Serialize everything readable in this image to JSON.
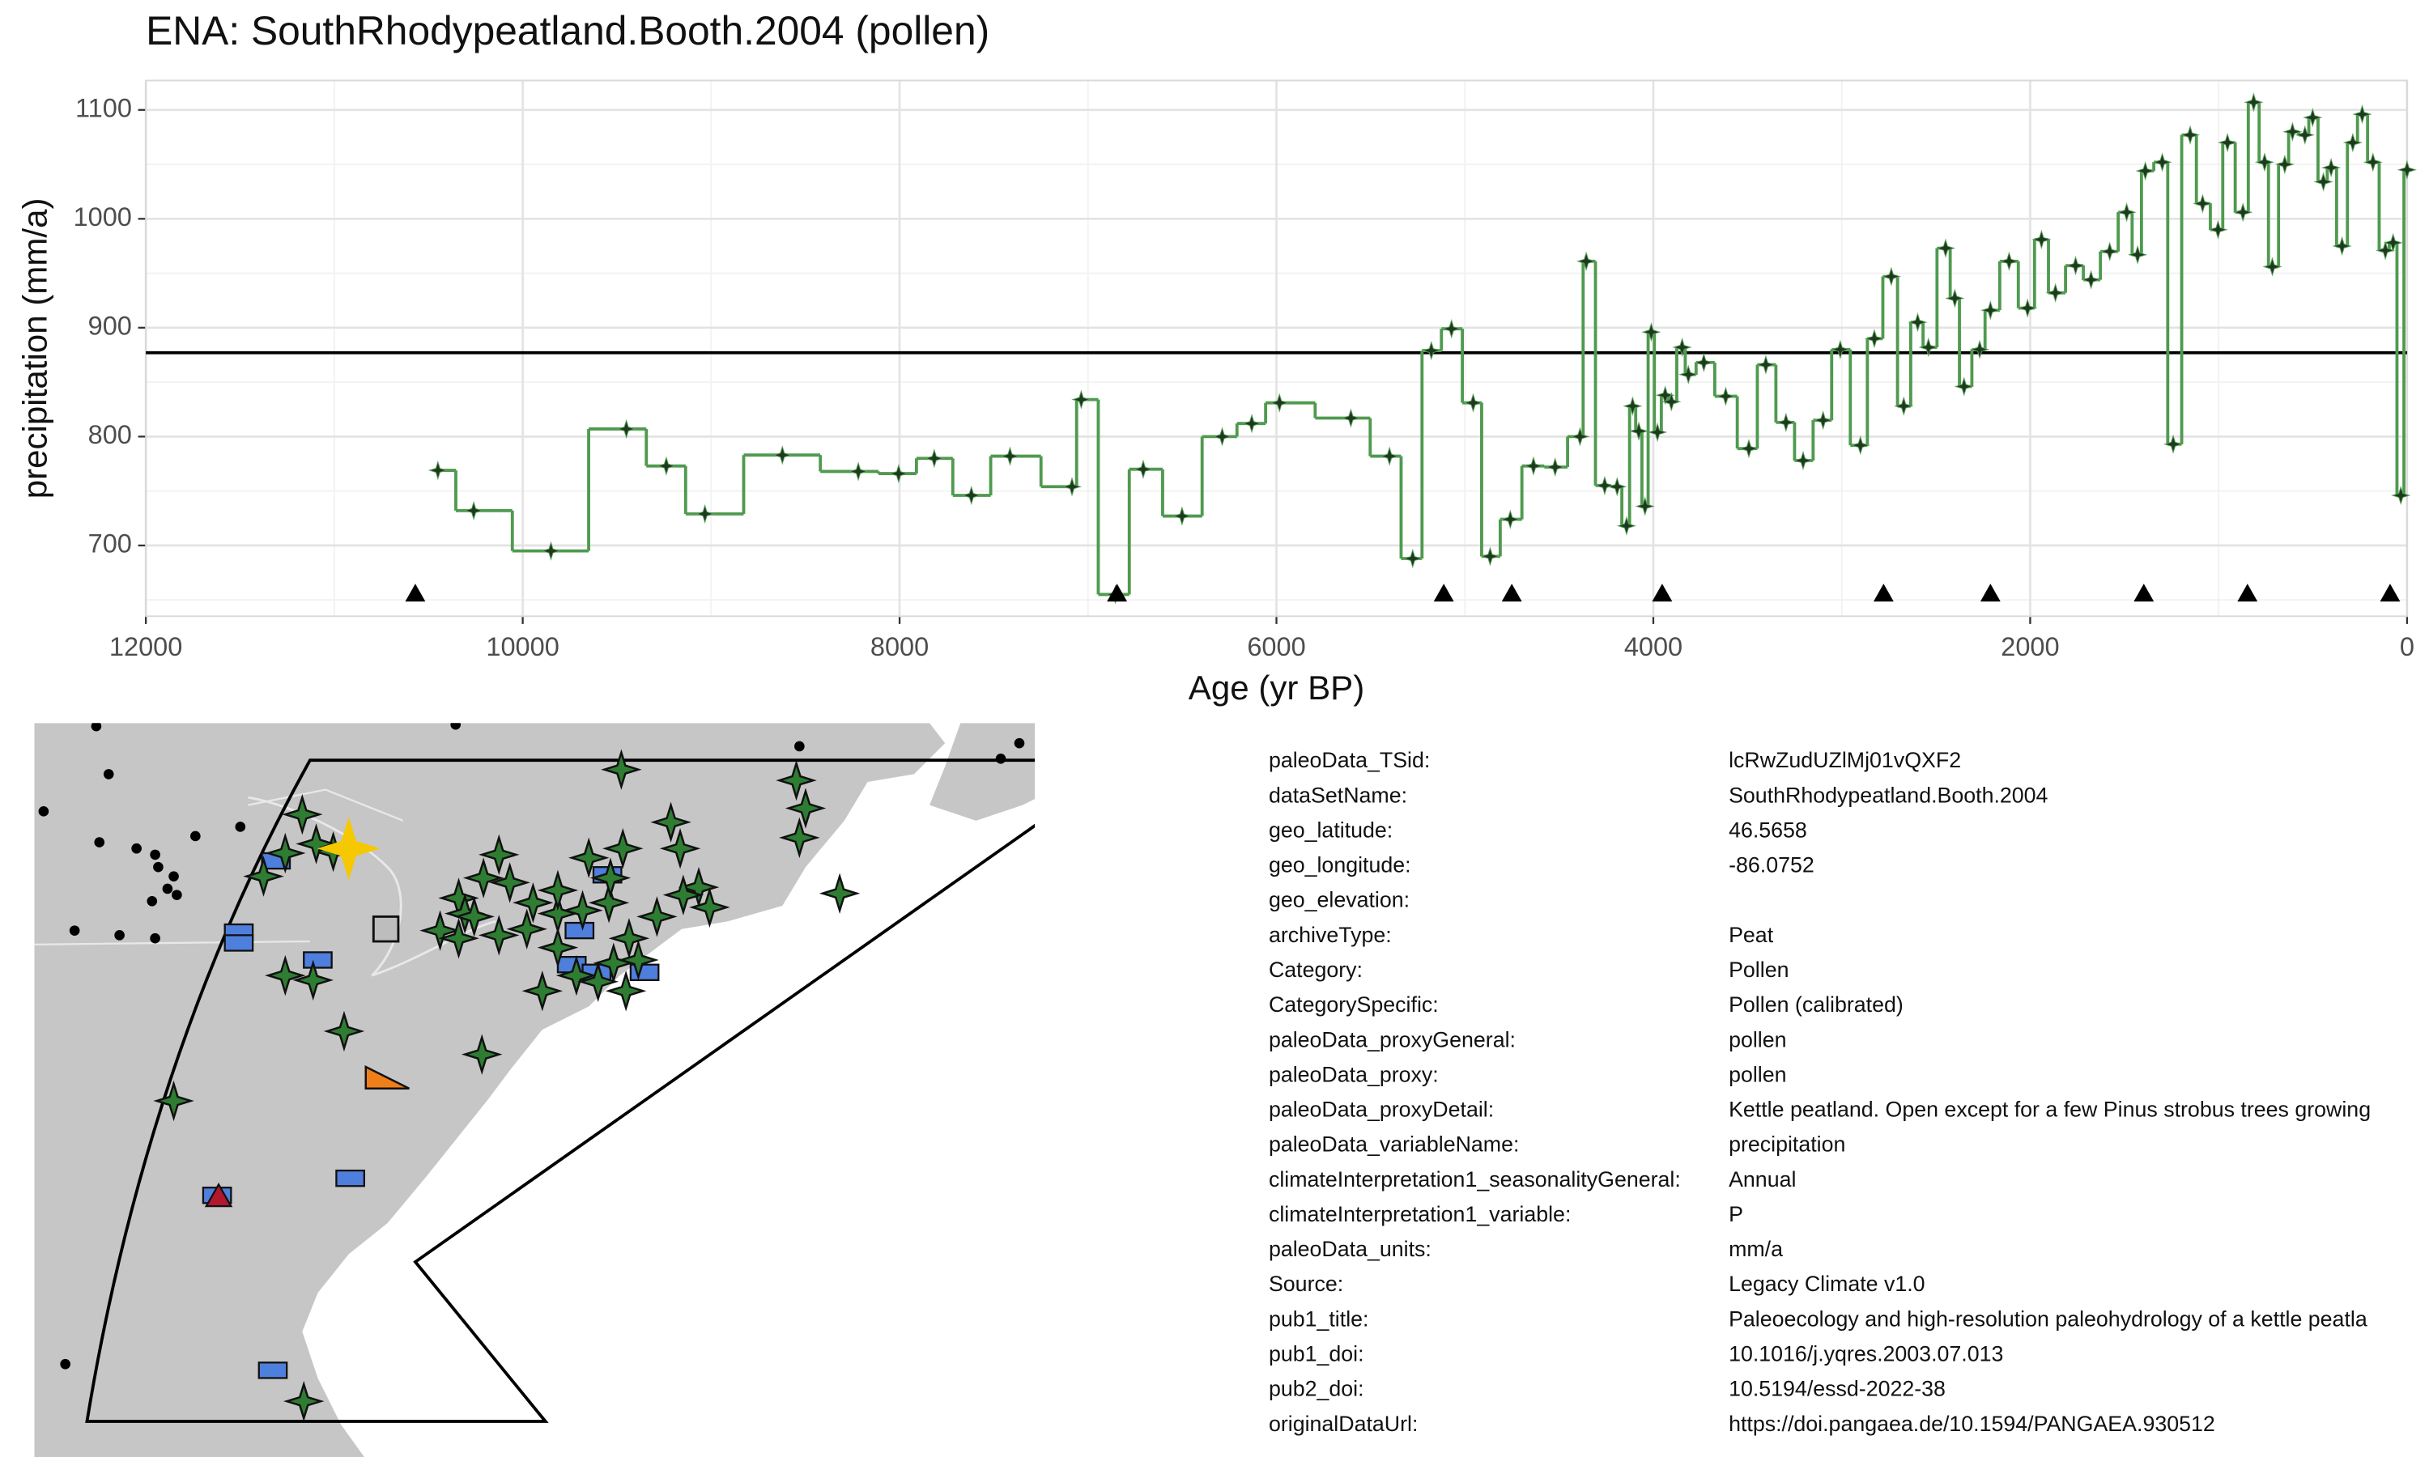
{
  "chart_data": {
    "type": "line",
    "title": "ENA: SouthRhodypeatland.Booth.2004 (pollen)",
    "x_label": "Age (yr BP)",
    "y_label": "precipitation (mm/a)",
    "xlim": [
      12000,
      0
    ],
    "xticks": [
      12000,
      10000,
      8000,
      6000,
      4000,
      2000,
      0
    ],
    "ylim": [
      635,
      1127
    ],
    "yticks": [
      700,
      800,
      900,
      1000,
      1100
    ],
    "grid": true,
    "x": [
      10450,
      10260,
      9850,
      9450,
      9238,
      9033,
      8622,
      8219,
      8005,
      7816,
      7619,
      7414,
      7085,
      7036,
      6855,
      6707,
      6501,
      6288,
      6131,
      5984,
      5605,
      5400,
      5277,
      5178,
      5071,
      4956,
      4866,
      4759,
      4636,
      4521,
      4389,
      4356,
      4258,
      4192,
      4142,
      4110,
      4077,
      4044,
      4011,
      3978,
      3937,
      3904,
      3847,
      3814,
      3732,
      3616,
      3493,
      3403,
      3296,
      3205,
      3099,
      3008,
      2901,
      2827,
      2737,
      2671,
      2597,
      2540,
      2449,
      2400,
      2351,
      2268,
      2211,
      2112,
      2014,
      1940,
      1866,
      1759,
      1677,
      1578,
      1488,
      1430,
      1389,
      1299,
      1241,
      1151,
      1085,
      1003,
      953,
      871,
      814,
      756,
      715,
      649,
      608,
      542,
      501,
      444,
      403,
      345,
      288,
      238,
      181,
      115,
      74,
      33,
      0
    ],
    "series": [
      {
        "color": "#4f9a4f",
        "values": [
          769,
          732,
          695,
          807,
          773,
          729,
          783,
          768,
          766,
          780,
          746,
          782,
          754,
          834,
          655,
          770,
          727,
          800,
          812,
          831,
          817,
          782,
          688,
          879,
          899,
          831,
          690,
          724,
          773,
          772,
          800,
          961,
          755,
          754,
          718,
          828,
          805,
          736,
          896,
          804,
          838,
          832,
          882,
          857,
          868,
          837,
          789,
          866,
          813,
          778,
          815,
          880,
          792,
          890,
          947,
          828,
          905,
          882,
          973,
          927,
          846,
          880,
          916,
          961,
          918,
          981,
          932,
          957,
          944,
          970,
          1006,
          967,
          1044,
          1052,
          793,
          1077,
          1014,
          990,
          1070,
          1006,
          1107,
          1052,
          956,
          1050,
          1080,
          1077,
          1093,
          1034,
          1047,
          975,
          1070,
          1096,
          1052,
          971,
          978,
          746,
          1045
        ]
      }
    ],
    "reference_line": 877,
    "chronology_ages": [
      10570,
      6846,
      5112,
      4751,
      3953,
      2778,
      2211,
      1397,
      847,
      90
    ]
  },
  "metadata": {
    "rows": [
      {
        "key": "paleoData_TSid:",
        "value": "lcRwZudUZlMj01vQXF2"
      },
      {
        "key": "dataSetName:",
        "value": "SouthRhodypeatland.Booth.2004"
      },
      {
        "key": "geo_latitude:",
        "value": "46.5658"
      },
      {
        "key": "geo_longitude:",
        "value": "-86.0752"
      },
      {
        "key": "geo_elevation:"
      },
      {
        "key": "archiveType:",
        "value": "Peat"
      },
      {
        "key": "Category:",
        "value": "Pollen"
      },
      {
        "key": "CategorySpecific:",
        "value": "Pollen (calibrated)"
      },
      {
        "key": "paleoData_proxyGeneral:",
        "value": "pollen"
      },
      {
        "key": "paleoData_proxy:",
        "value": "pollen"
      },
      {
        "key": "paleoData_proxyDetail:",
        "value": "Kettle peatland. Open except for a few Pinus strobus trees growing"
      },
      {
        "key": "paleoData_variableName:",
        "value": "precipitation"
      },
      {
        "key": "climateInterpretation1_seasonalityGeneral:",
        "value": "Annual"
      },
      {
        "key": "climateInterpretation1_variable:",
        "value": "P"
      },
      {
        "key": "paleoData_units:",
        "value": "mm/a"
      },
      {
        "key": "Source:",
        "value": "Legacy Climate v1.0"
      },
      {
        "key": "pub1_title:",
        "value": "Paleoecology and high-resolution paleohydrology of a kettle peatla"
      },
      {
        "key": "pub1_doi:",
        "value": "10.1016/j.yqres.2003.07.013"
      },
      {
        "key": "pub2_doi:",
        "value": "10.5194/essd-2022-38"
      },
      {
        "key": "originalDataUrl:",
        "value": "https://doi.pangaea.de/10.1594/PANGAEA.930512"
      }
    ]
  }
}
